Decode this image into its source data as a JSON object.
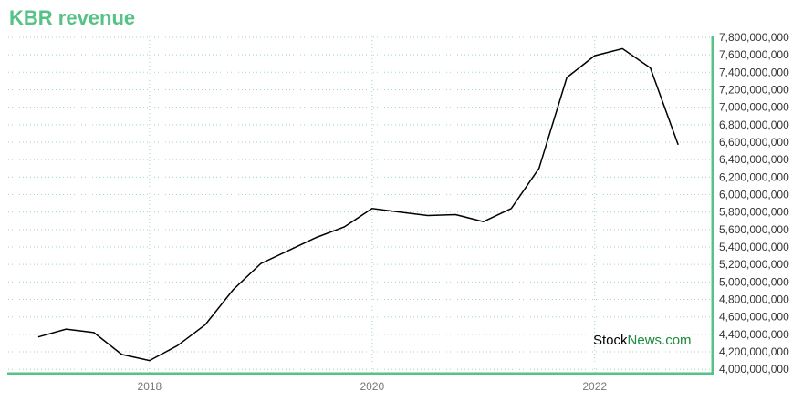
{
  "title": "KBR revenue",
  "watermark": {
    "part1": "Stock",
    "part2": "News.com"
  },
  "colors": {
    "accent": "#57c285",
    "line": "#000000",
    "grid": "#9fd9b7"
  },
  "chart_data": {
    "type": "line",
    "title": "KBR revenue",
    "xlabel": "",
    "ylabel": "",
    "grid": true,
    "x_ticks": [
      {
        "label": "2018",
        "value": 2017.75
      },
      {
        "label": "2020",
        "value": 2019.75
      },
      {
        "label": "2022",
        "value": 2021.75
      }
    ],
    "y_ticks": [
      4000000000,
      4200000000,
      4400000000,
      4600000000,
      4800000000,
      5000000000,
      5200000000,
      5400000000,
      5600000000,
      5800000000,
      6000000000,
      6200000000,
      6400000000,
      6600000000,
      6800000000,
      7000000000,
      7200000000,
      7400000000,
      7600000000,
      7800000000
    ],
    "y_tick_labels": [
      "4,000,000,000",
      "4,200,000,000",
      "4,400,000,000",
      "4,600,000,000",
      "4,800,000,000",
      "5,000,000,000",
      "5,200,000,000",
      "5,400,000,000",
      "5,600,000,000",
      "5,800,000,000",
      "6,000,000,000",
      "6,200,000,000",
      "6,400,000,000",
      "6,600,000,000",
      "6,800,000,000",
      "7,000,000,000",
      "7,200,000,000",
      "7,400,000,000",
      "7,600,000,000",
      "7,800,000,000"
    ],
    "xlim": [
      2016.48,
      2022.81
    ],
    "ylim": [
      3950000000,
      7810000000
    ],
    "series": [
      {
        "x": [
          2016.75,
          2017.0,
          2017.25,
          2017.5,
          2017.75,
          2018.0,
          2018.25,
          2018.5,
          2018.75,
          2019.0,
          2019.25,
          2019.5,
          2019.75,
          2020.0,
          2020.25,
          2020.5,
          2020.75,
          2021.0,
          2021.25,
          2021.5,
          2021.75,
          2022.0,
          2022.25,
          2022.5
        ],
        "y": [
          4370000000,
          4460000000,
          4420000000,
          4170000000,
          4100000000,
          4270000000,
          4510000000,
          4910000000,
          5210000000,
          5360000000,
          5510000000,
          5630000000,
          5840000000,
          5800000000,
          5760000000,
          5770000000,
          5690000000,
          5840000000,
          6300000000,
          7340000000,
          7590000000,
          7670000000,
          7450000000,
          6570000000
        ]
      }
    ]
  }
}
